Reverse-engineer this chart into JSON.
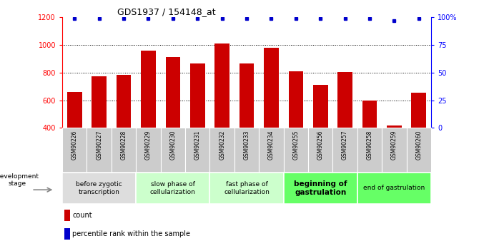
{
  "title": "GDS1937 / 154148_at",
  "samples": [
    "GSM90226",
    "GSM90227",
    "GSM90228",
    "GSM90229",
    "GSM90230",
    "GSM90231",
    "GSM90232",
    "GSM90233",
    "GSM90234",
    "GSM90255",
    "GSM90256",
    "GSM90257",
    "GSM90258",
    "GSM90259",
    "GSM90260"
  ],
  "counts": [
    660,
    775,
    785,
    960,
    910,
    865,
    1010,
    865,
    980,
    810,
    710,
    805,
    600,
    420,
    655
  ],
  "percentile": [
    99,
    99,
    99,
    99,
    99,
    99,
    99,
    99,
    99,
    99,
    99,
    99,
    99,
    97,
    99
  ],
  "bar_color": "#cc0000",
  "dot_color": "#0000cc",
  "ylim_left": [
    400,
    1200
  ],
  "ylim_right": [
    0,
    100
  ],
  "yticks_left": [
    400,
    600,
    800,
    1000,
    1200
  ],
  "yticks_right": [
    0,
    25,
    50,
    75,
    100
  ],
  "yticklabels_right": [
    "0",
    "25",
    "50",
    "75",
    "100%"
  ],
  "stages": [
    {
      "label": "before zygotic\ntranscription",
      "start": 0,
      "end": 3,
      "color": "#dddddd",
      "bold": false
    },
    {
      "label": "slow phase of\ncellularization",
      "start": 3,
      "end": 6,
      "color": "#ccffcc",
      "bold": false
    },
    {
      "label": "fast phase of\ncellularization",
      "start": 6,
      "end": 9,
      "color": "#ccffcc",
      "bold": false
    },
    {
      "label": "beginning of\ngastrulation",
      "start": 9,
      "end": 12,
      "color": "#66ff66",
      "bold": true
    },
    {
      "label": "end of gastrulation",
      "start": 12,
      "end": 15,
      "color": "#66ff66",
      "bold": false
    }
  ],
  "dev_stage_label": "development stage",
  "legend_count_label": "count",
  "legend_pct_label": "percentile rank within the sample",
  "dotted_grid_values": [
    600,
    800,
    1000
  ],
  "bar_width": 0.6,
  "background_color": "#ffffff"
}
